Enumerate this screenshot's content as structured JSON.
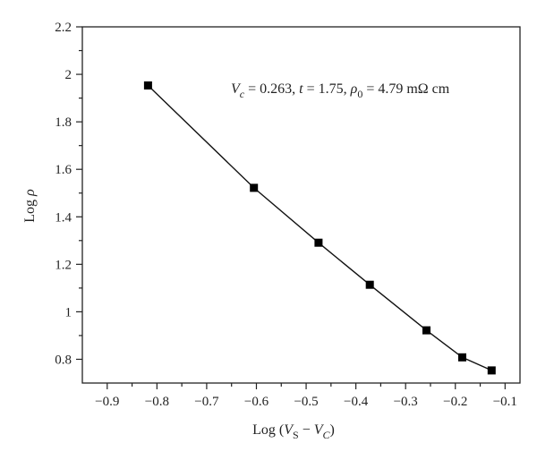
{
  "chart_data": {
    "type": "line",
    "title": "",
    "xlabel": "Log (V_S − V_C)",
    "ylabel": "Log ρ",
    "xlim": [
      -0.95,
      -0.07
    ],
    "ylim": [
      0.7,
      2.2
    ],
    "x_ticks": [
      -0.9,
      -0.8,
      -0.7,
      -0.6,
      -0.5,
      -0.4,
      -0.3,
      -0.2,
      -0.1
    ],
    "x_tick_labels": [
      "−0.9",
      "−0.8",
      "−0.7",
      "−0.6",
      "−0.5",
      "−0.4",
      "−0.3",
      "−0.2",
      "−0.1"
    ],
    "y_ticks": [
      0.8,
      1.0,
      1.2,
      1.4,
      1.6,
      1.8,
      2.0,
      2.2
    ],
    "y_tick_labels": [
      "0.8",
      "1",
      "1.2",
      "1.4",
      "1.6",
      "1.8",
      "2",
      "2.2"
    ],
    "minor_ticks": true,
    "grid": false,
    "legend": "none",
    "marker": "square",
    "series": [
      {
        "x": [
          -0.818,
          -0.605,
          -0.475,
          -0.372,
          -0.258,
          -0.186,
          -0.127
        ],
        "y": [
          1.953,
          1.522,
          1.291,
          1.114,
          0.922,
          0.808,
          0.753
        ]
      }
    ],
    "annotation": {
      "V": "V",
      "c": "c",
      "vc_value": " = 0.263, ",
      "t": "t",
      "t_value": " = 1.75, ",
      "rho": "ρ",
      "zero": "0",
      "rho_value": " = 4.79 mΩ cm"
    },
    "x_label_parts": {
      "prefix": "Log (",
      "V1": "V",
      "S": "S",
      "minus": " − ",
      "V2": "V",
      "C": "C",
      "suffix": ")"
    },
    "y_label_parts": {
      "prefix": "Log ",
      "rho": "ρ"
    }
  }
}
